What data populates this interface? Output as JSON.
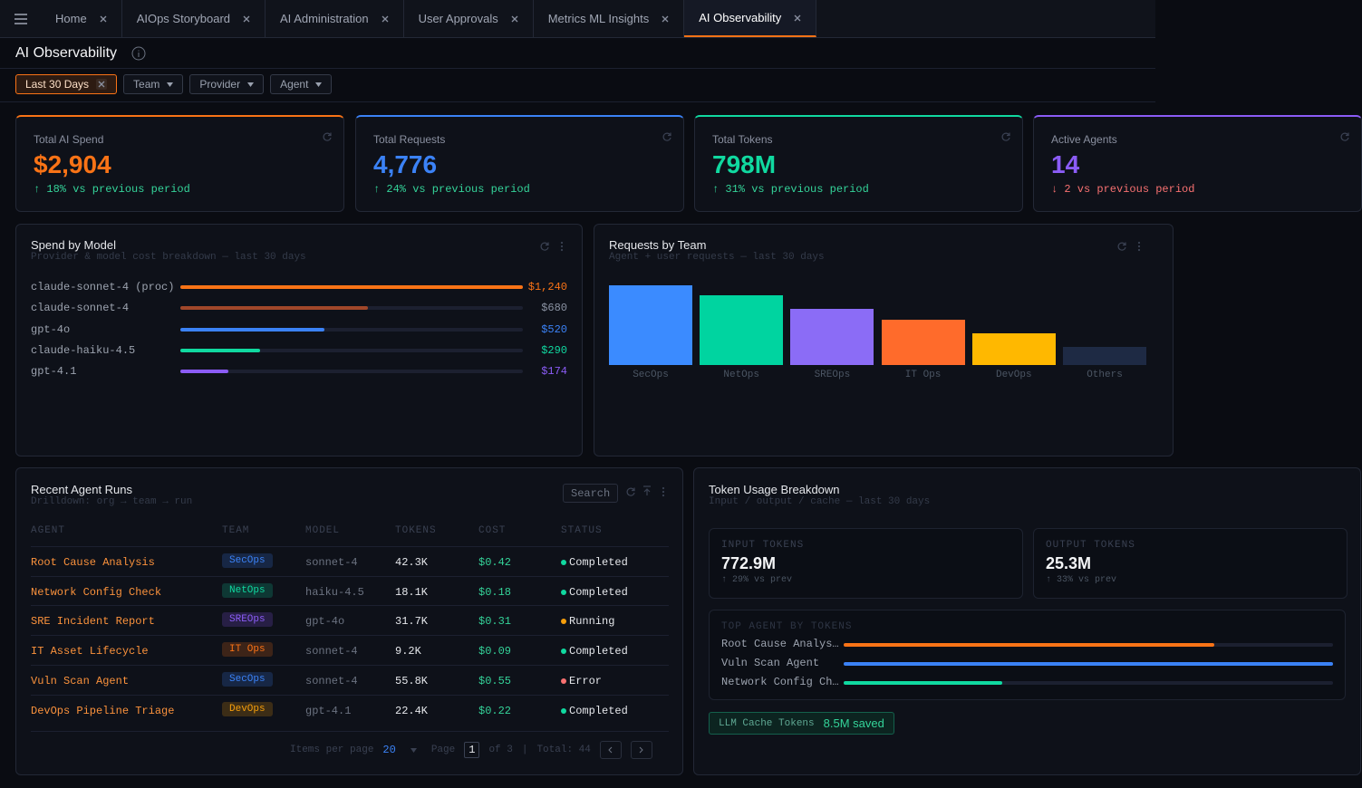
{
  "tabs": [
    {
      "label": "Home",
      "active": false
    },
    {
      "label": "AIOps Storyboard",
      "active": false
    },
    {
      "label": "AI Administration",
      "active": false
    },
    {
      "label": "User Approvals",
      "active": false
    },
    {
      "label": "Metrics ML Insights",
      "active": false
    },
    {
      "label": "AI Observability",
      "active": true
    }
  ],
  "page_title": "AI Observability",
  "filters": [
    {
      "label": "Last 30 Days",
      "active": true
    },
    {
      "label": "Team",
      "active": false
    },
    {
      "label": "Provider",
      "active": false
    },
    {
      "label": "Agent",
      "active": false
    }
  ],
  "kpis": [
    {
      "label": "Total AI Spend",
      "value": "$2,904",
      "change": "↑ 18% vs previous period",
      "color": "#f97316",
      "change_color": "#34d399"
    },
    {
      "label": "Total Requests",
      "value": "4,776",
      "change": "↑ 24% vs previous period",
      "color": "#3b82f6",
      "change_color": "#34d399"
    },
    {
      "label": "Total Tokens",
      "value": "798M",
      "change": "↑ 31% vs previous period",
      "color": "#10d9a0",
      "change_color": "#34d399"
    },
    {
      "label": "Active Agents",
      "value": "14",
      "change": "↓ 2 vs previous period",
      "color": "#8b5cf6",
      "change_color": "#f87171"
    }
  ],
  "spend_by_model": {
    "title": "Spend by Model",
    "subtitle": "Provider & model cost breakdown — last 30 days",
    "xlim": [
      0,
      1240
    ],
    "rows": [
      {
        "model": "claude-sonnet-4 (proc)",
        "value": 1240,
        "value_label": "$1,240",
        "color": "#f97316",
        "label_color": "#f97316"
      },
      {
        "model": "claude-sonnet-4",
        "value": 680,
        "value_label": "$680",
        "color": "#a0472a",
        "label_color": "#8b93a3"
      },
      {
        "model": "gpt-4o",
        "value": 520,
        "value_label": "$520",
        "color": "#3b82f6",
        "label_color": "#3b82f6"
      },
      {
        "model": "claude-haiku-4.5",
        "value": 290,
        "value_label": "$290",
        "color": "#10d9a0",
        "label_color": "#10d9a0"
      },
      {
        "model": "gpt-4.1",
        "value": 174,
        "value_label": "$174",
        "color": "#8b5cf6",
        "label_color": "#8b5cf6"
      }
    ]
  },
  "requests_by_team": {
    "title": "Requests by Team",
    "subtitle": "Agent + user requests — last 30 days",
    "ylim": [
      0,
      1400
    ],
    "categories": [
      "SecOps",
      "NetOps",
      "SREOps",
      "IT Ops",
      "DevOps",
      "Others"
    ],
    "values": [
      1266,
      1108,
      892,
      719,
      504,
      288
    ],
    "colors": [
      "#3b8bff",
      "#00d4a0",
      "#8b6cf6",
      "#ff6b2b",
      "#ffb800",
      "#1e2a44"
    ]
  },
  "recent_agent_runs": {
    "title": "Recent Agent Runs",
    "subtitle": "Drilldown: org → team → run",
    "search": "Search",
    "columns": [
      "AGENT",
      "TEAM",
      "MODEL",
      "TOKENS",
      "COST",
      "STATUS"
    ],
    "rows": [
      {
        "agent": "Root Cause Analysis",
        "team": "SecOps",
        "team_color": "#3b82f6",
        "model": "sonnet-4",
        "tokens": "42.3K",
        "cost": "$0.42",
        "status": "Completed",
        "status_color": "#10d9a0"
      },
      {
        "agent": "Network Config Check",
        "team": "NetOps",
        "team_color": "#10d9a0",
        "model": "haiku-4.5",
        "tokens": "18.1K",
        "cost": "$0.18",
        "status": "Completed",
        "status_color": "#10d9a0"
      },
      {
        "agent": "SRE Incident Report",
        "team": "SREOps",
        "team_color": "#8b5cf6",
        "model": "gpt-4o",
        "tokens": "31.7K",
        "cost": "$0.31",
        "status": "Running",
        "status_color": "#f59e0b"
      },
      {
        "agent": "IT Asset Lifecycle",
        "team": "IT Ops",
        "team_color": "#f97316",
        "model": "sonnet-4",
        "tokens": "9.2K",
        "cost": "$0.09",
        "status": "Completed",
        "status_color": "#10d9a0"
      },
      {
        "agent": "Vuln Scan Agent",
        "team": "SecOps",
        "team_color": "#3b82f6",
        "model": "sonnet-4",
        "tokens": "55.8K",
        "cost": "$0.55",
        "status": "Error",
        "status_color": "#f87171"
      },
      {
        "agent": "DevOps Pipeline Triage",
        "team": "DevOps",
        "team_color": "#f59e0b",
        "model": "gpt-4.1",
        "tokens": "22.4K",
        "cost": "$0.22",
        "status": "Completed",
        "status_color": "#10d9a0"
      }
    ],
    "pagination": {
      "items_per_page_label": "Items per page",
      "items_per_page": 20,
      "page_label": "Page",
      "page": 1,
      "of": "of 3",
      "separator": "|",
      "total": "Total: 44"
    }
  },
  "token_usage": {
    "title": "Token Usage Breakdown",
    "subtitle": "Input / output / cache — last 30 days",
    "cards": [
      {
        "label": "INPUT TOKENS",
        "value": "772.9M",
        "change": "↑ 29% vs prev"
      },
      {
        "label": "OUTPUT TOKENS",
        "value": "25.3M",
        "change": "↑ 33% vs prev"
      }
    ],
    "top_agents": {
      "title": "TOP AGENT BY TOKENS",
      "xlim": [
        0,
        55800
      ],
      "rows": [
        {
          "label": "Root Cause Analys…",
          "value": 42300,
          "color": "#f97316"
        },
        {
          "label": "Vuln Scan Agent",
          "value": 55800,
          "color": "#3b82f6"
        },
        {
          "label": "Network Config Ch…",
          "value": 18100,
          "color": "#10d9a0"
        }
      ]
    },
    "cache": {
      "label": "LLM Cache Tokens",
      "value": "8.5M saved"
    }
  }
}
